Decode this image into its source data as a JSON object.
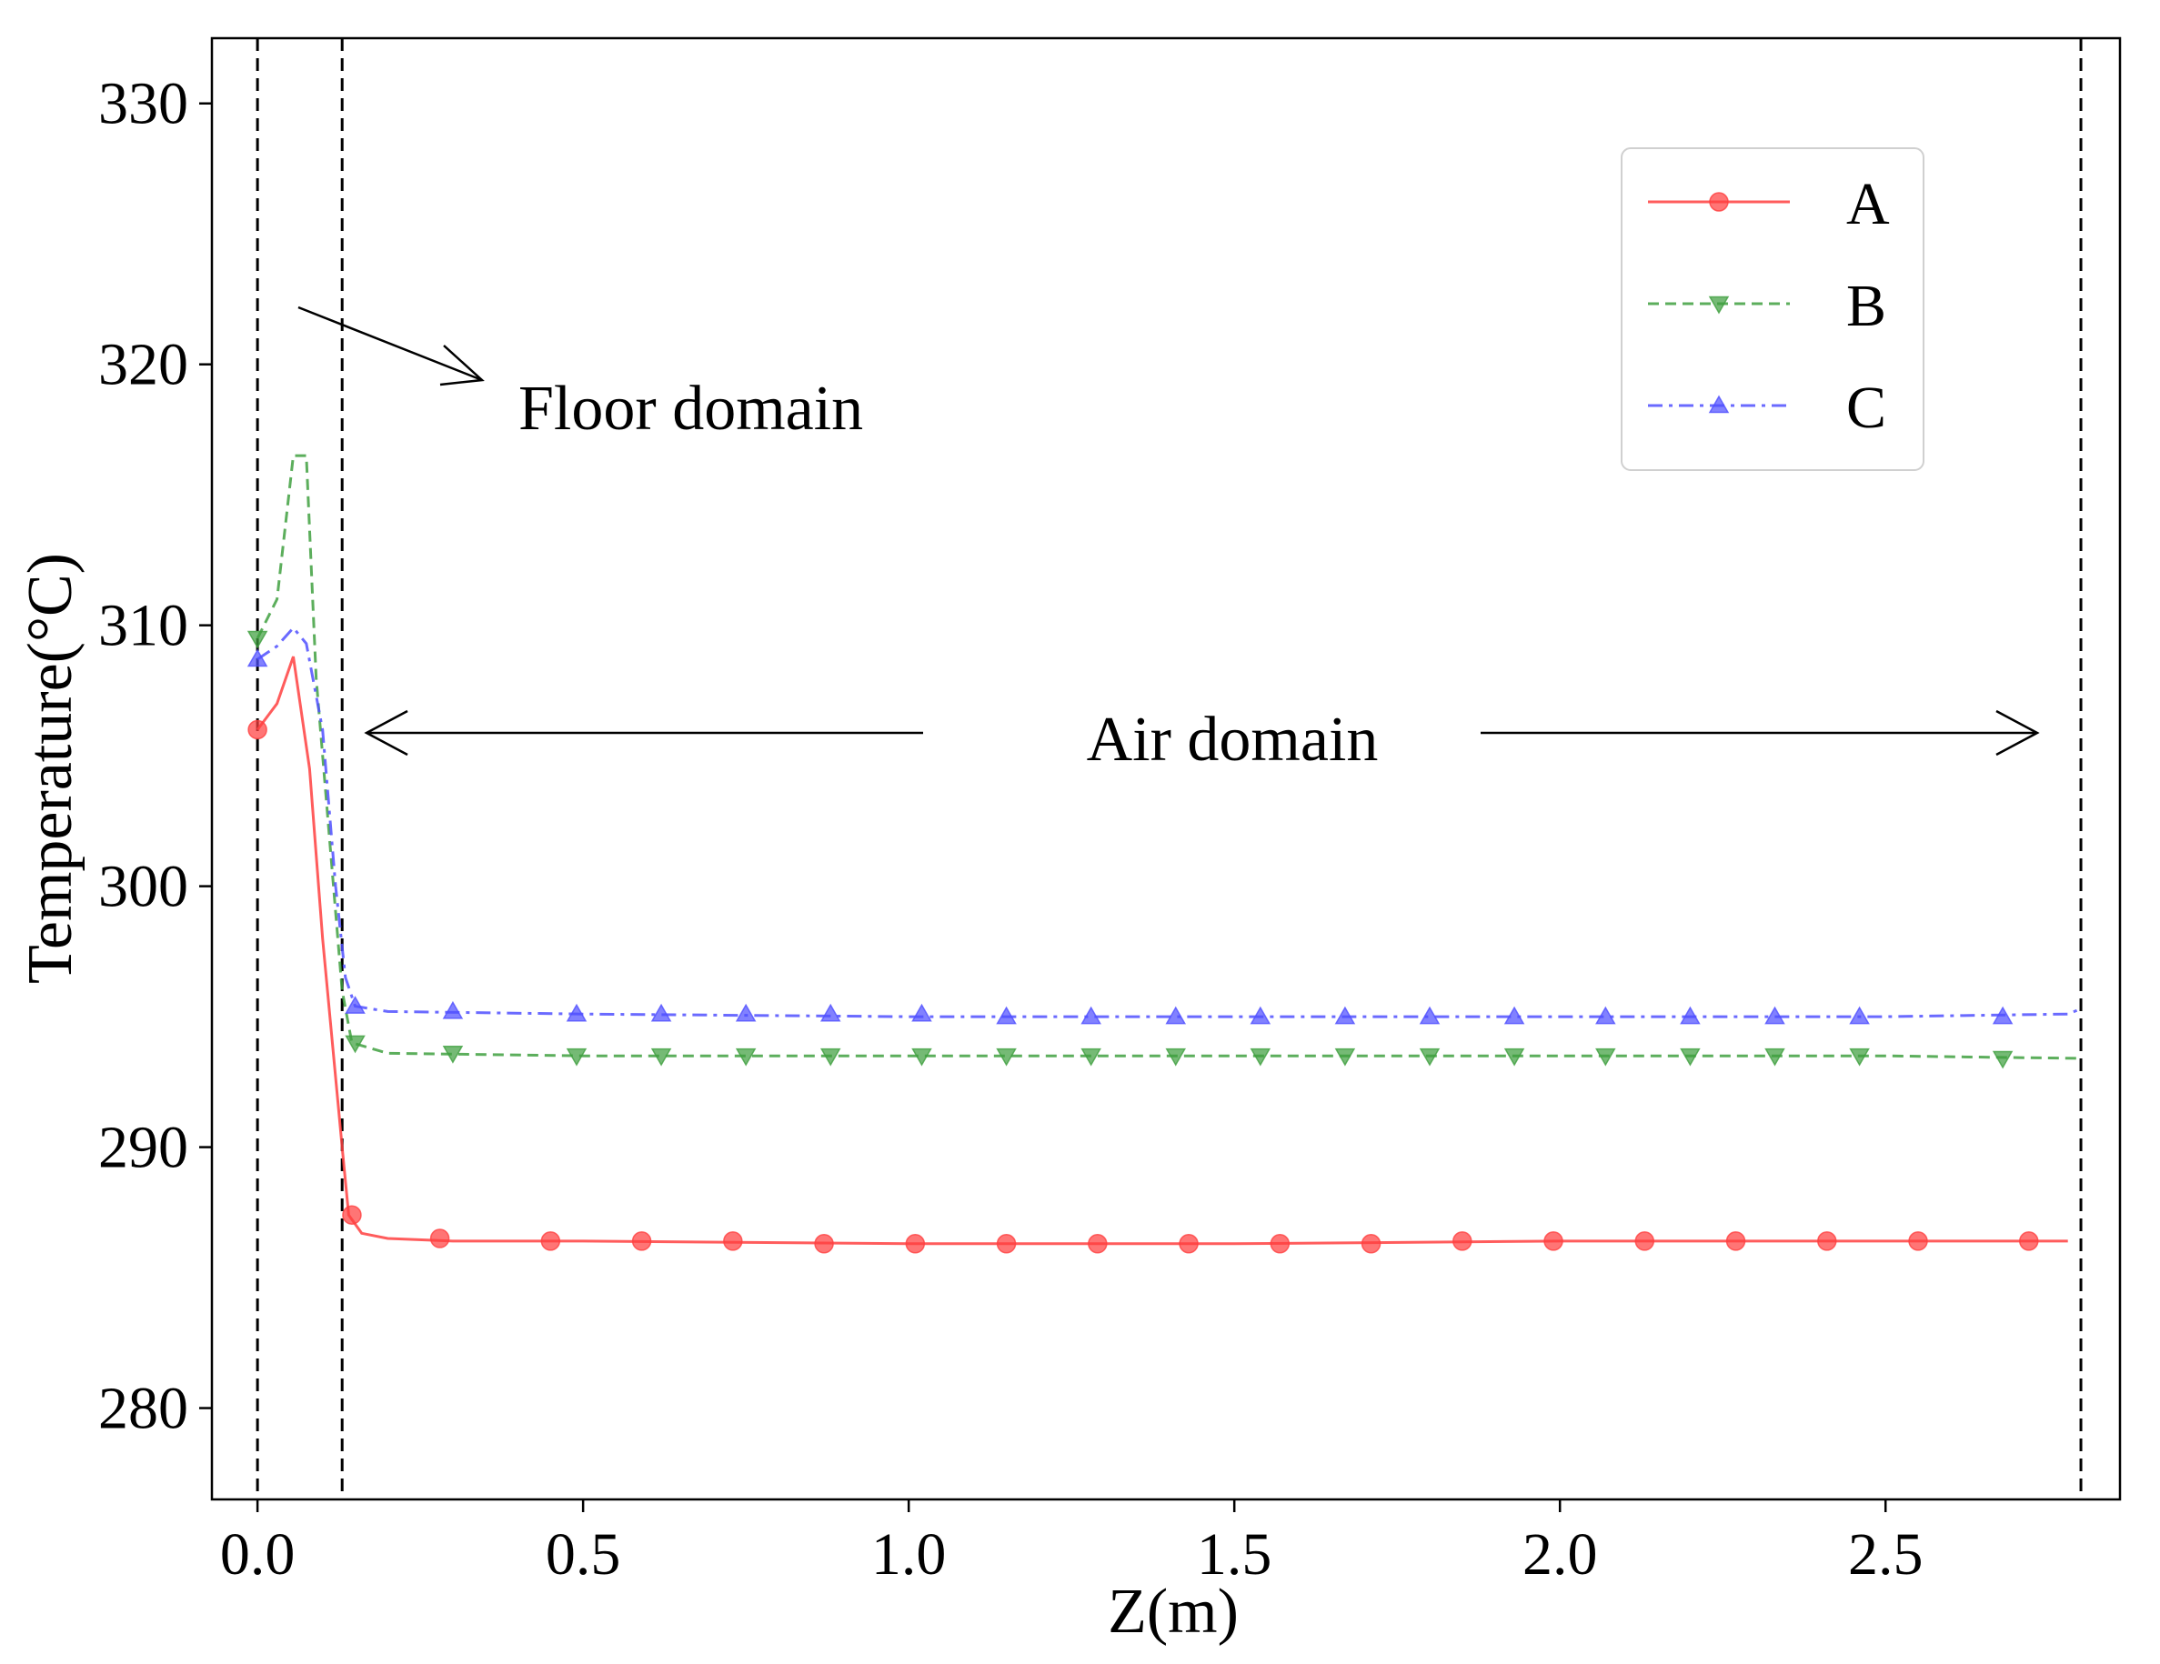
{
  "chart_data": {
    "type": "line",
    "xlabel": "Z(m)",
    "ylabel": "Temperature(°C)",
    "xlim": [
      -0.07,
      2.86
    ],
    "ylim": [
      276.5,
      332.5
    ],
    "xticks": [
      0.0,
      0.5,
      1.0,
      1.5,
      2.0,
      2.5
    ],
    "xtick_labels": [
      "0.0",
      "0.5",
      "1.0",
      "1.5",
      "2.0",
      "2.5"
    ],
    "yticks": [
      280,
      290,
      300,
      310,
      320,
      330
    ],
    "ytick_labels": [
      "280",
      "290",
      "300",
      "310",
      "320",
      "330"
    ],
    "grid": false,
    "legend_position": "top-right",
    "vlines": [
      0.0,
      0.13,
      2.8
    ],
    "annotations": {
      "floor_label": "Floor domain",
      "air_label": "Air domain"
    },
    "series": [
      {
        "name": "A",
        "color": "#ff4040",
        "linestyle": "solid",
        "marker": "circle",
        "line": [
          [
            0.0,
            306.0
          ],
          [
            0.03,
            307.0
          ],
          [
            0.055,
            308.8
          ],
          [
            0.08,
            304.5
          ],
          [
            0.1,
            298.0
          ],
          [
            0.13,
            290.0
          ],
          [
            0.14,
            287.4
          ],
          [
            0.16,
            286.7
          ],
          [
            0.2,
            286.5
          ],
          [
            0.3,
            286.4
          ],
          [
            0.5,
            286.4
          ],
          [
            1.0,
            286.3
          ],
          [
            1.5,
            286.3
          ],
          [
            2.0,
            286.4
          ],
          [
            2.5,
            286.4
          ],
          [
            2.78,
            286.4
          ]
        ],
        "markers": [
          [
            0.0,
            306.0
          ],
          [
            0.145,
            287.4
          ],
          [
            0.28,
            286.5
          ],
          [
            0.45,
            286.4
          ],
          [
            0.59,
            286.4
          ],
          [
            0.73,
            286.4
          ],
          [
            0.87,
            286.3
          ],
          [
            1.01,
            286.3
          ],
          [
            1.15,
            286.3
          ],
          [
            1.29,
            286.3
          ],
          [
            1.43,
            286.3
          ],
          [
            1.57,
            286.3
          ],
          [
            1.71,
            286.3
          ],
          [
            1.85,
            286.4
          ],
          [
            1.99,
            286.4
          ],
          [
            2.13,
            286.4
          ],
          [
            2.27,
            286.4
          ],
          [
            2.41,
            286.4
          ],
          [
            2.55,
            286.4
          ],
          [
            2.72,
            286.4
          ]
        ]
      },
      {
        "name": "B",
        "color": "#40a040",
        "linestyle": "dashed",
        "marker": "triangle-down",
        "line": [
          [
            0.0,
            309.5
          ],
          [
            0.03,
            311.0
          ],
          [
            0.055,
            316.5
          ],
          [
            0.075,
            316.5
          ],
          [
            0.09,
            308.0
          ],
          [
            0.11,
            302.0
          ],
          [
            0.13,
            296.0
          ],
          [
            0.145,
            294.0
          ],
          [
            0.2,
            293.6
          ],
          [
            0.5,
            293.5
          ],
          [
            1.0,
            293.5
          ],
          [
            1.5,
            293.5
          ],
          [
            2.0,
            293.5
          ],
          [
            2.5,
            293.5
          ],
          [
            2.8,
            293.4
          ]
        ],
        "markers": [
          [
            0.0,
            309.5
          ],
          [
            0.15,
            294.0
          ],
          [
            0.3,
            293.6
          ],
          [
            0.49,
            293.5
          ],
          [
            0.62,
            293.5
          ],
          [
            0.75,
            293.5
          ],
          [
            0.88,
            293.5
          ],
          [
            1.02,
            293.5
          ],
          [
            1.15,
            293.5
          ],
          [
            1.28,
            293.5
          ],
          [
            1.41,
            293.5
          ],
          [
            1.54,
            293.5
          ],
          [
            1.67,
            293.5
          ],
          [
            1.8,
            293.5
          ],
          [
            1.93,
            293.5
          ],
          [
            2.07,
            293.5
          ],
          [
            2.2,
            293.5
          ],
          [
            2.33,
            293.5
          ],
          [
            2.46,
            293.5
          ],
          [
            2.68,
            293.4
          ]
        ]
      },
      {
        "name": "C",
        "color": "#5050ff",
        "linestyle": "dashdot",
        "marker": "triangle-up",
        "line": [
          [
            0.0,
            308.7
          ],
          [
            0.03,
            309.2
          ],
          [
            0.055,
            309.9
          ],
          [
            0.075,
            309.3
          ],
          [
            0.1,
            306.0
          ],
          [
            0.12,
            300.0
          ],
          [
            0.135,
            296.5
          ],
          [
            0.15,
            295.4
          ],
          [
            0.2,
            295.2
          ],
          [
            0.5,
            295.1
          ],
          [
            1.0,
            295.0
          ],
          [
            1.5,
            295.0
          ],
          [
            2.0,
            295.0
          ],
          [
            2.5,
            295.0
          ],
          [
            2.78,
            295.1
          ],
          [
            2.8,
            295.3
          ]
        ],
        "markers": [
          [
            0.0,
            308.7
          ],
          [
            0.15,
            295.4
          ],
          [
            0.3,
            295.2
          ],
          [
            0.49,
            295.1
          ],
          [
            0.62,
            295.1
          ],
          [
            0.75,
            295.1
          ],
          [
            0.88,
            295.1
          ],
          [
            1.02,
            295.1
          ],
          [
            1.15,
            295.0
          ],
          [
            1.28,
            295.0
          ],
          [
            1.41,
            295.0
          ],
          [
            1.54,
            295.0
          ],
          [
            1.67,
            295.0
          ],
          [
            1.8,
            295.0
          ],
          [
            1.93,
            295.0
          ],
          [
            2.07,
            295.0
          ],
          [
            2.2,
            295.0
          ],
          [
            2.33,
            295.0
          ],
          [
            2.46,
            295.0
          ],
          [
            2.68,
            295.0
          ]
        ]
      }
    ]
  }
}
